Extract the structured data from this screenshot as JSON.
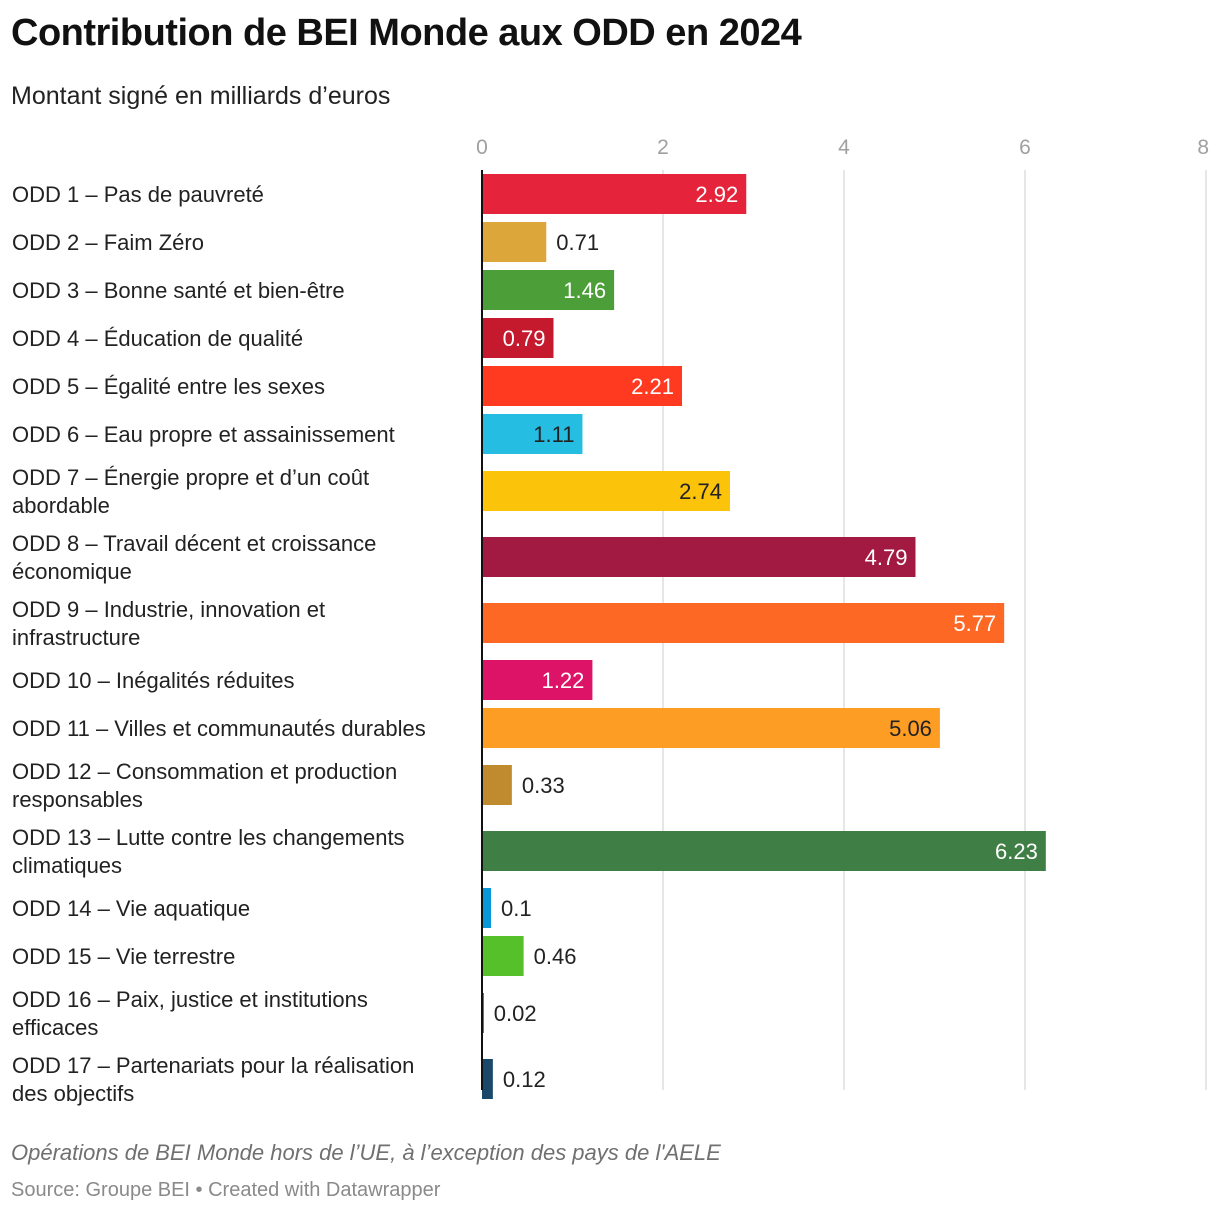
{
  "title": "Contribution de BEI Monde aux ODD en 2024",
  "subtitle": "Montant signé en milliards d’euros",
  "note": "Opérations de BEI Monde hors de l’UE, à l’exception des pays de l'AELE",
  "source": "Source: Groupe BEI • Created with Datawrapper",
  "chart_data": {
    "type": "bar",
    "orientation": "horizontal",
    "title": "Contribution de BEI Monde aux ODD en 2024",
    "subtitle": "Montant signé en milliards d’euros",
    "xlim": [
      0,
      8
    ],
    "ticks": [
      0,
      2,
      4,
      6,
      8
    ],
    "grid": true,
    "categories": [
      "ODD 1 – Pas de pauvreté",
      "ODD 2 – Faim Zéro",
      "ODD 3 – Bonne santé et bien-être",
      "ODD 4 – Éducation de qualité",
      "ODD 5 – Égalité entre les sexes",
      "ODD 6 – Eau propre et assainissement",
      "ODD 7 – Énergie propre et d’un coût abordable",
      "ODD 8 – Travail décent et croissance économique",
      "ODD 9 – Industrie, innovation et infrastructure",
      "ODD 10 – Inégalités réduites",
      "ODD 11 – Villes et communautés durables",
      "ODD 12 – Consommation et production responsables",
      "ODD 13 – Lutte contre les changements climatiques",
      "ODD 14 – Vie aquatique",
      "ODD 15 – Vie terrestre",
      "ODD 16 – Paix, justice et institutions efficaces",
      "ODD 17 – Partenariats pour la réalisation des objectifs"
    ],
    "category_lines": [
      [
        "ODD 1 – Pas de pauvreté"
      ],
      [
        "ODD 2 – Faim Zéro"
      ],
      [
        "ODD 3 – Bonne santé et bien-être"
      ],
      [
        "ODD 4 – Éducation de qualité"
      ],
      [
        "ODD 5 – Égalité entre les sexes"
      ],
      [
        "ODD 6 – Eau propre et assainissement"
      ],
      [
        "ODD 7 – Énergie propre et d’un coût",
        "abordable"
      ],
      [
        "ODD 8 – Travail décent et croissance",
        "économique"
      ],
      [
        "ODD 9 – Industrie, innovation et",
        "infrastructure"
      ],
      [
        "ODD 10 – Inégalités réduites"
      ],
      [
        "ODD 11 – Villes et communautés durables"
      ],
      [
        "ODD 12 – Consommation et production",
        "responsables"
      ],
      [
        "ODD 13 – Lutte contre les changements",
        "climatiques"
      ],
      [
        "ODD 14 – Vie aquatique"
      ],
      [
        "ODD 15 – Vie terrestre"
      ],
      [
        "ODD 16 – Paix, justice et institutions",
        "efficaces"
      ],
      [
        "ODD 17 – Partenariats pour la réalisation",
        "des objectifs"
      ]
    ],
    "values": [
      2.92,
      0.71,
      1.46,
      0.79,
      2.21,
      1.11,
      2.74,
      4.79,
      5.77,
      1.22,
      5.06,
      0.33,
      6.23,
      0.1,
      0.46,
      0.02,
      0.12
    ],
    "value_labels": [
      "2.92",
      "0.71",
      "1.46",
      "0.79",
      "2.21",
      "1.11",
      "2.74",
      "4.79",
      "5.77",
      "1.22",
      "5.06",
      "0.33",
      "6.23",
      "0.1",
      "0.46",
      "0.02",
      "0.12"
    ],
    "colors": [
      "#e5243b",
      "#dda63a",
      "#4c9f38",
      "#c5192d",
      "#ff3a21",
      "#26bde2",
      "#fcc30b",
      "#a21942",
      "#fd6925",
      "#dd1367",
      "#fd9d24",
      "#bf8b2e",
      "#3f7e44",
      "#0a97d9",
      "#56c02b",
      "#00689d",
      "#19486a"
    ],
    "label_colors": [
      "#ffffff",
      "#222222",
      "#ffffff",
      "#ffffff",
      "#ffffff",
      "#222222",
      "#222222",
      "#ffffff",
      "#ffffff",
      "#ffffff",
      "#222222",
      "#222222",
      "#ffffff",
      "#222222",
      "#222222",
      "#222222",
      "#222222"
    ]
  }
}
